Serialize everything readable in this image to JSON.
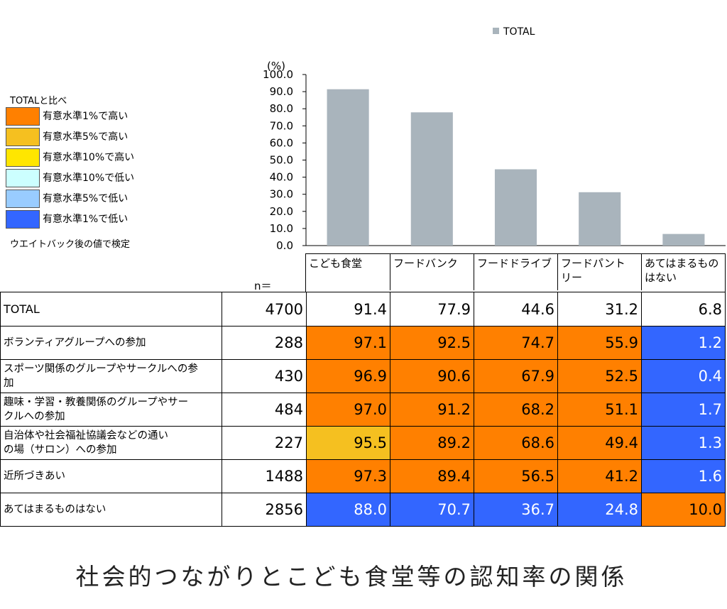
{
  "legend": {
    "title": "TOTALと比べ",
    "items": [
      {
        "label": "有意水準1%で高い",
        "color": "#FF8000"
      },
      {
        "label": "有意水準5%で高い",
        "color": "#F5C020"
      },
      {
        "label": "有意水準10%で高い",
        "color": "#FFE600"
      },
      {
        "label": "有意水準10%で低い",
        "color": "#CCFFFF"
      },
      {
        "label": "有意水準5%で低い",
        "color": "#99CCFF"
      },
      {
        "label": "有意水準1%で低い",
        "color": "#3366FF"
      }
    ],
    "note": "ウエイトバック後の値で検定"
  },
  "colors": {
    "bar": "#A9B4BC",
    "sig1_high": "#FF8000",
    "sig5_high": "#F5C020",
    "sig1_low": "#3366FF"
  },
  "chart_data": {
    "type": "bar",
    "unit_label": "(%)",
    "legend_entry": "TOTAL",
    "categories": [
      "こども食堂",
      "フードバンク",
      "フードドライブ",
      "フードパントリー",
      "あてはまるものはない"
    ],
    "category_lines": [
      [
        "こども食堂"
      ],
      [
        "フードバンク"
      ],
      [
        "フードドライブ"
      ],
      [
        "フードパント",
        "リー"
      ],
      [
        "あてはまるもの",
        "はない"
      ]
    ],
    "series": [
      {
        "name": "TOTAL",
        "values": [
          91.4,
          77.9,
          44.6,
          31.2,
          6.8
        ]
      }
    ],
    "ylim": [
      0,
      100
    ],
    "yticks": [
      "100.0",
      "90.0",
      "80.0",
      "70.0",
      "60.0",
      "50.0",
      "40.0",
      "30.0",
      "20.0",
      "10.0",
      "0.0"
    ],
    "grid": false,
    "legend_position": "top"
  },
  "table": {
    "n_label": "n＝",
    "rows": [
      {
        "label_lines": [
          "TOTAL"
        ],
        "n": "4700",
        "values": [
          "91.4",
          "77.9",
          "44.6",
          "31.2",
          "6.8"
        ],
        "sig": [
          "",
          "",
          "",
          "",
          ""
        ]
      },
      {
        "label_lines": [
          "ボランティアグループへの参加"
        ],
        "n": "288",
        "values": [
          "97.1",
          "92.5",
          "74.7",
          "55.9",
          "1.2"
        ],
        "sig": [
          "h1",
          "h1",
          "h1",
          "h1",
          "l1"
        ]
      },
      {
        "label_lines": [
          "スポーツ関係のグループやサークルへの参",
          "加"
        ],
        "n": "430",
        "values": [
          "96.9",
          "90.6",
          "67.9",
          "52.5",
          "0.4"
        ],
        "sig": [
          "h1",
          "h1",
          "h1",
          "h1",
          "l1"
        ]
      },
      {
        "label_lines": [
          "趣味・学習・教養関係のグループやサー",
          "クルへの参加"
        ],
        "n": "484",
        "values": [
          "97.0",
          "91.2",
          "68.2",
          "51.1",
          "1.7"
        ],
        "sig": [
          "h1",
          "h1",
          "h1",
          "h1",
          "l1"
        ]
      },
      {
        "label_lines": [
          "自治体や社会福祉協議会などの通い",
          "の場（サロン）への参加"
        ],
        "n": "227",
        "values": [
          "95.5",
          "89.2",
          "68.6",
          "49.4",
          "1.3"
        ],
        "sig": [
          "h5",
          "h1",
          "h1",
          "h1",
          "l1"
        ]
      },
      {
        "label_lines": [
          "近所づきあい"
        ],
        "n": "1488",
        "values": [
          "97.3",
          "89.4",
          "56.5",
          "41.2",
          "1.6"
        ],
        "sig": [
          "h1",
          "h1",
          "h1",
          "h1",
          "l1"
        ]
      },
      {
        "label_lines": [
          "あてはまるものはない"
        ],
        "n": "2856",
        "values": [
          "88.0",
          "70.7",
          "36.7",
          "24.8",
          "10.0"
        ],
        "sig": [
          "l1",
          "l1",
          "l1",
          "l1",
          "h1"
        ]
      }
    ]
  },
  "caption": "社会的つながりとこども食堂等の認知率の関係"
}
